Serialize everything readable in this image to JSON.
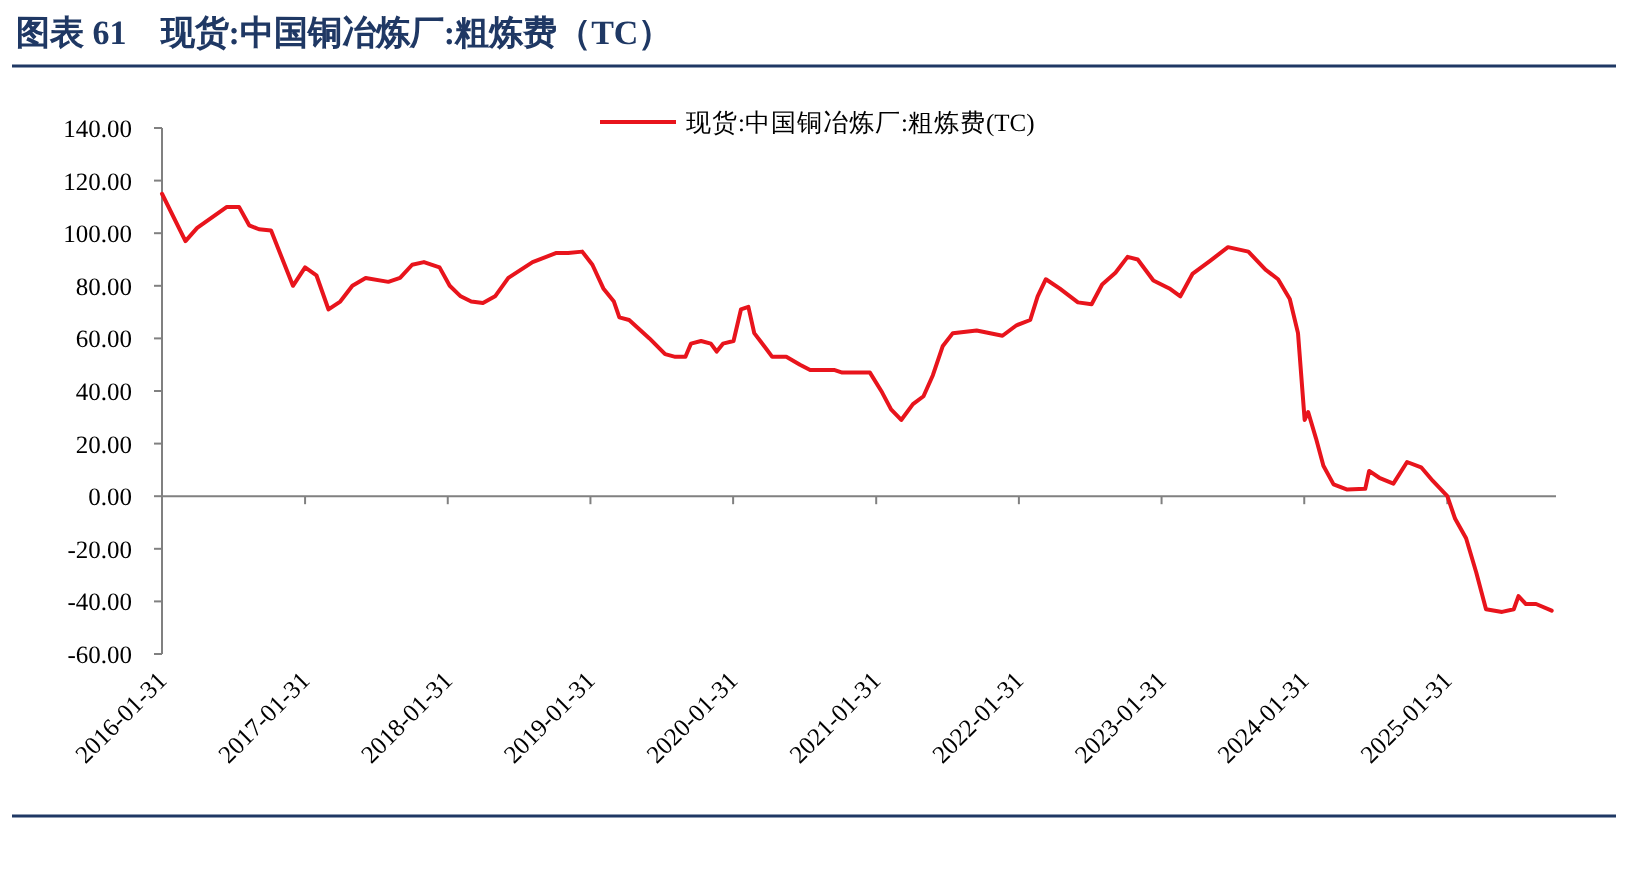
{
  "chart_data": {
    "type": "line",
    "title": "图表 61　现货:中国铜冶炼厂:粗炼费（TC）",
    "legend": "top",
    "marker": "none",
    "line_style": "solid",
    "xlim": [
      "2016-01-31",
      "2025-11-05"
    ],
    "xticks": [
      "2016-01-31",
      "2017-01-31",
      "2018-01-31",
      "2019-01-31",
      "2020-01-31",
      "2021-01-31",
      "2022-01-31",
      "2023-01-31",
      "2024-01-31",
      "2025-01-31"
    ],
    "ylim": [
      -60,
      140
    ],
    "yticks": [
      {
        "value": -60,
        "label": "-60.00"
      },
      {
        "value": -40,
        "label": "-40.00"
      },
      {
        "value": -20,
        "label": "-20.00"
      },
      {
        "value": 0,
        "label": "0.00"
      },
      {
        "value": 20,
        "label": "20.00"
      },
      {
        "value": 40,
        "label": "40.00"
      },
      {
        "value": 60,
        "label": "60.00"
      },
      {
        "value": 80,
        "label": "80.00"
      },
      {
        "value": 100,
        "label": "100.00"
      },
      {
        "value": 120,
        "label": "120.00"
      },
      {
        "value": 140,
        "label": "140.00"
      }
    ],
    "series": [
      {
        "name": "现货:中国铜冶炼厂:粗炼费(TC)",
        "color": "#e8141c",
        "x": [
          "2016-01-31",
          "2016-03-31",
          "2016-04-30",
          "2016-07-15",
          "2016-08-15",
          "2016-09-10",
          "2016-10-05",
          "2016-11-05",
          "2016-12-31",
          "2017-01-31",
          "2017-03-01",
          "2017-04-01",
          "2017-05-01",
          "2017-06-01",
          "2017-07-05",
          "2017-09-01",
          "2017-10-01",
          "2017-11-01",
          "2017-12-01",
          "2018-01-10",
          "2018-02-05",
          "2018-03-05",
          "2018-04-01",
          "2018-05-01",
          "2018-06-01",
          "2018-07-05",
          "2018-09-05",
          "2018-11-05",
          "2018-12-05",
          "2019-01-10",
          "2019-02-05",
          "2019-03-05",
          "2019-04-01",
          "2019-04-15",
          "2019-05-10",
          "2019-07-01",
          "2019-08-10",
          "2019-09-05",
          "2019-10-01",
          "2019-10-15",
          "2019-11-10",
          "2019-12-05",
          "2019-12-20",
          "2020-01-05",
          "2020-02-01",
          "2020-02-20",
          "2020-03-10",
          "2020-03-25",
          "2020-04-25",
          "2020-05-10",
          "2020-06-15",
          "2020-07-20",
          "2020-08-15",
          "2020-10-15",
          "2020-11-05",
          "2021-01-15",
          "2021-02-15",
          "2021-03-10",
          "2021-04-05",
          "2021-05-05",
          "2021-06-01",
          "2021-06-25",
          "2021-07-20",
          "2021-08-15",
          "2021-10-15",
          "2021-12-20",
          "2022-01-25",
          "2022-03-01",
          "2022-03-20",
          "2022-04-10",
          "2022-05-15",
          "2022-07-01",
          "2022-08-05",
          "2022-09-01",
          "2022-10-05",
          "2022-11-05",
          "2022-12-01",
          "2023-01-10",
          "2023-02-20",
          "2023-03-20",
          "2023-04-20",
          "2023-06-05",
          "2023-07-20",
          "2023-09-10",
          "2023-10-25",
          "2023-11-25",
          "2023-12-25",
          "2024-01-15",
          "2024-02-01",
          "2024-02-10",
          "2024-03-01",
          "2024-03-20",
          "2024-04-15",
          "2024-05-20",
          "2024-07-05",
          "2024-07-15",
          "2024-08-10",
          "2024-09-15",
          "2024-10-20",
          "2024-11-25",
          "2024-12-25",
          "2025-01-31",
          "2025-02-20",
          "2025-03-20",
          "2025-04-15",
          "2025-05-10",
          "2025-06-20",
          "2025-07-20",
          "2025-08-01",
          "2025-08-20",
          "2025-09-15",
          "2025-10-25"
        ],
        "values": [
          115,
          97,
          102,
          110,
          110,
          103,
          101.5,
          101,
          80,
          87,
          84,
          71,
          74,
          80,
          83,
          81.5,
          83,
          88,
          89,
          87,
          80,
          76,
          74,
          73.5,
          76,
          83,
          89,
          92.5,
          92.5,
          93,
          88,
          79,
          74,
          68,
          67,
          60,
          54,
          53,
          53,
          58,
          59,
          58,
          55,
          58,
          59,
          71,
          72,
          62,
          56,
          53,
          53,
          50,
          48,
          48,
          47,
          47,
          39.5,
          33,
          29,
          35,
          38,
          46,
          57,
          62,
          63,
          61,
          65,
          67,
          76,
          82.5,
          79,
          73.7,
          73,
          80.5,
          85,
          91,
          90,
          82,
          79,
          76,
          84.5,
          89.6,
          94.7,
          93,
          86,
          82.5,
          75,
          62,
          29,
          32,
          22,
          11.6,
          4.5,
          2.5,
          2.8,
          9.6,
          7,
          4.8,
          13,
          11,
          5.8,
          0,
          -8.6,
          -16,
          -29,
          -43,
          -44,
          -43,
          -38,
          -41,
          -41,
          -43.5
        ]
      }
    ]
  }
}
